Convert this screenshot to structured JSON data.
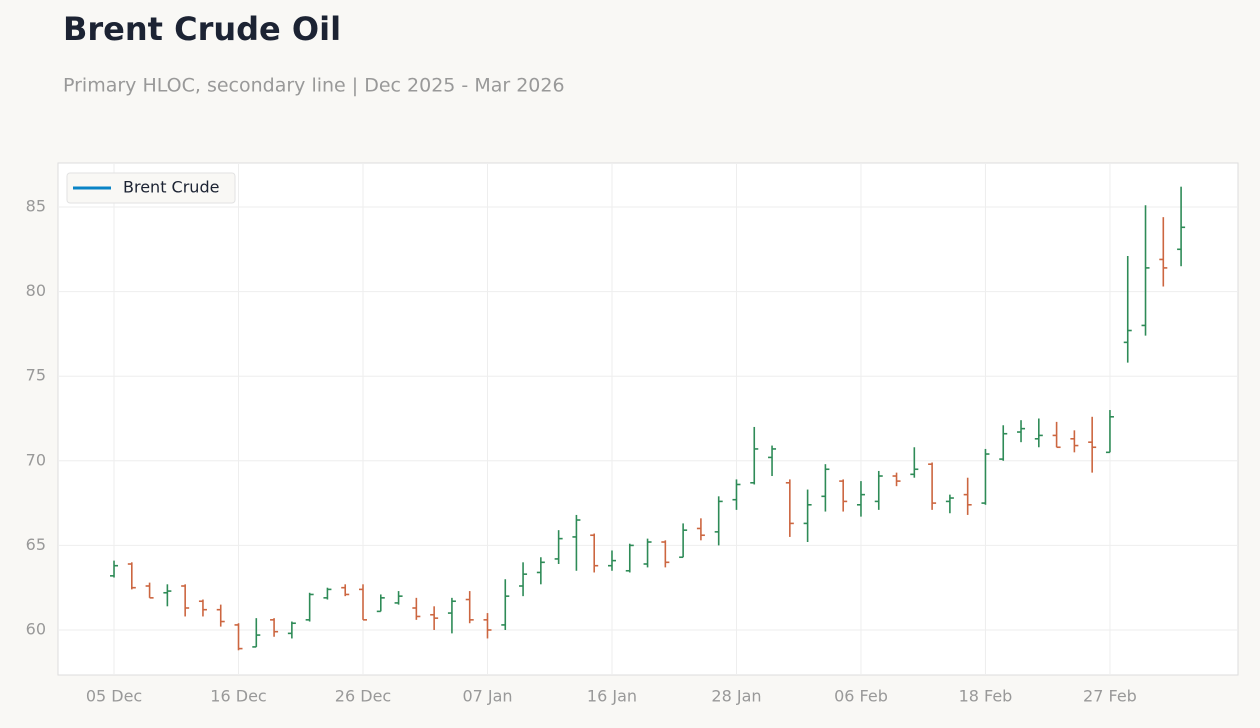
{
  "chart_data": {
    "type": "ohlc",
    "title": "Brent Crude Oil",
    "subtitle": "Primary HLOC, secondary line | Dec 2025 - Mar 2026",
    "categories": [
      "05 Dec",
      null,
      null,
      null,
      null,
      null,
      null,
      "16 Dec",
      null,
      null,
      null,
      null,
      null,
      null,
      "26 Dec",
      null,
      null,
      null,
      null,
      null,
      null,
      "07 Jan",
      null,
      null,
      null,
      null,
      null,
      null,
      "16 Jan",
      null,
      null,
      null,
      null,
      null,
      null,
      "28 Jan",
      null,
      null,
      null,
      null,
      null,
      null,
      "06 Feb",
      null,
      null,
      null,
      null,
      null,
      null,
      "18 Feb",
      null,
      null,
      null,
      null,
      null,
      null,
      "27 Feb",
      null,
      null,
      null,
      null
    ],
    "up_color": "#2e8b57",
    "down_color": "#cc6640",
    "series": [
      {
        "name": "Brent Crude",
        "color": "#0a84c6",
        "open": [
          63.2,
          63.9,
          62.6,
          62.2,
          62.6,
          61.7,
          61.2,
          60.3,
          59.0,
          60.6,
          59.8,
          60.6,
          61.9,
          62.5,
          62.4,
          61.1,
          61.6,
          61.3,
          60.9,
          61.0,
          61.8,
          60.6,
          60.3,
          62.6,
          63.4,
          64.2,
          65.5,
          65.6,
          63.8,
          63.5,
          63.9,
          65.2,
          64.3,
          66.0,
          65.8,
          67.7,
          68.7,
          70.2,
          68.7,
          66.3,
          67.9,
          68.8,
          67.4,
          67.6,
          69.1,
          69.2,
          69.8,
          67.6,
          68.0,
          67.5,
          70.1,
          71.7,
          71.3,
          71.5,
          71.3,
          71.1,
          70.5,
          77.0,
          78.0,
          81.9,
          82.5
        ],
        "high": [
          64.1,
          64.0,
          62.8,
          62.7,
          62.7,
          61.8,
          61.5,
          60.4,
          60.7,
          60.7,
          60.5,
          62.2,
          62.5,
          62.7,
          62.7,
          62.1,
          62.3,
          61.9,
          61.4,
          61.9,
          62.3,
          61.0,
          63.0,
          64.0,
          64.3,
          65.9,
          66.8,
          65.7,
          64.7,
          65.1,
          65.4,
          65.3,
          66.3,
          66.6,
          67.9,
          68.9,
          72.0,
          70.9,
          68.9,
          68.3,
          69.8,
          68.9,
          68.8,
          69.4,
          69.3,
          70.8,
          69.9,
          68.0,
          69.0,
          70.7,
          72.1,
          72.4,
          72.5,
          72.3,
          71.8,
          72.6,
          73.0,
          82.1,
          85.1,
          84.4,
          86.2
        ],
        "low": [
          63.1,
          62.4,
          61.9,
          61.4,
          60.8,
          60.8,
          60.2,
          58.8,
          59.0,
          59.6,
          59.5,
          60.5,
          61.8,
          62.0,
          60.6,
          61.1,
          61.5,
          60.6,
          60.0,
          59.8,
          60.4,
          59.5,
          60.0,
          62.0,
          62.7,
          63.9,
          63.5,
          63.4,
          63.5,
          63.4,
          63.7,
          63.7,
          64.3,
          65.3,
          65.0,
          67.1,
          68.6,
          69.1,
          65.5,
          65.2,
          67.0,
          67.0,
          66.7,
          67.1,
          68.5,
          69.0,
          67.1,
          66.9,
          66.8,
          67.4,
          70.0,
          71.1,
          70.8,
          70.8,
          70.5,
          69.3,
          70.5,
          75.8,
          77.4,
          80.3,
          81.5
        ],
        "close": [
          63.8,
          62.5,
          61.9,
          62.3,
          61.3,
          61.2,
          60.5,
          58.9,
          59.7,
          59.9,
          60.4,
          62.1,
          62.4,
          62.1,
          60.6,
          61.9,
          62.0,
          60.8,
          60.7,
          61.7,
          60.6,
          60.0,
          62.0,
          63.3,
          64.0,
          65.4,
          66.5,
          63.8,
          64.1,
          65.0,
          65.2,
          64.0,
          65.9,
          65.6,
          67.6,
          68.6,
          70.7,
          70.7,
          66.3,
          67.4,
          69.5,
          67.6,
          68.0,
          69.1,
          68.8,
          69.5,
          67.5,
          67.8,
          67.4,
          70.4,
          71.6,
          71.9,
          71.5,
          70.8,
          70.9,
          70.8,
          72.6,
          77.7,
          81.4,
          81.4,
          83.8
        ]
      }
    ],
    "ylim": [
      57.34,
      87.6
    ],
    "yticks": [
      60,
      65,
      70,
      75,
      80,
      85
    ],
    "grid": true,
    "legend": "upper-left"
  }
}
